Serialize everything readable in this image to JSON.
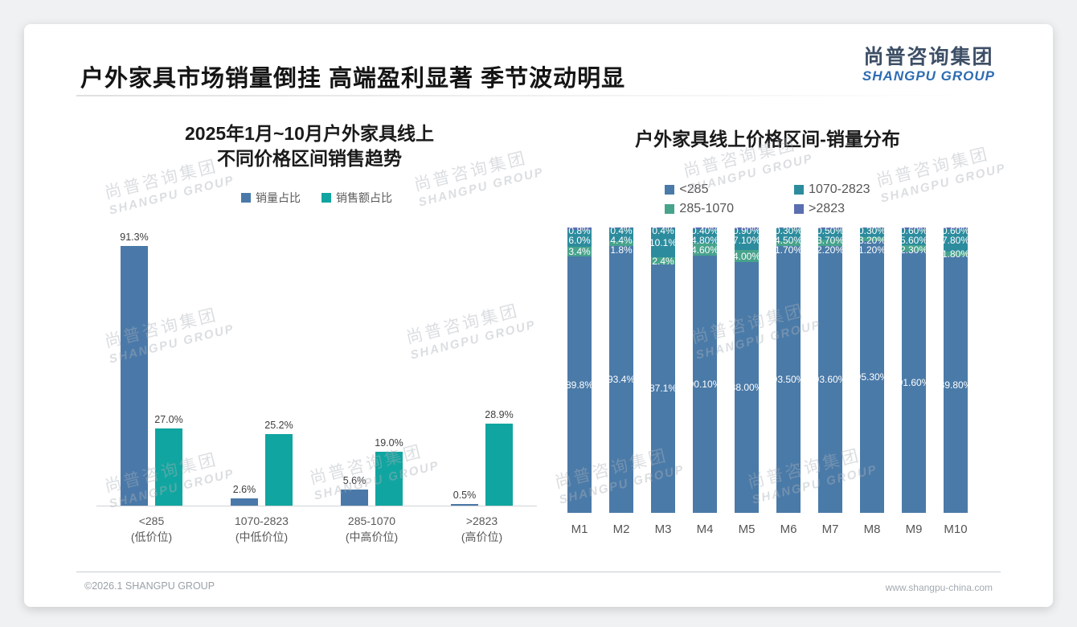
{
  "header": {
    "title": "户外家具市场销量倒挂 高端盈利显著 季节波动明显",
    "logo_cn": "尚普咨询集团",
    "logo_en": "SHANGPU GROUP"
  },
  "footer": {
    "left": "©2026.1 SHANGPU GROUP",
    "right": "www.shangpu-china.com"
  },
  "watermark": {
    "cn": "尚普咨询集团",
    "en": "SHANGPU GROUP"
  },
  "chart_data": [
    {
      "type": "bar",
      "title": "2025年1月~10月户外家具线上不同价格区间销售趋势",
      "title_lines": [
        "2025年1月~10月户外家具线上",
        "不同价格区间销售趋势"
      ],
      "categories": [
        "<285",
        "1070-2823",
        "285-1070",
        ">2823"
      ],
      "category_sublabels": [
        "(低价位)",
        "(中低价位)",
        "(中高价位)",
        "(高价位)"
      ],
      "xlabel": "",
      "ylabel": "",
      "ylim": [
        0,
        100
      ],
      "grid": false,
      "legend_position": "top",
      "series": [
        {
          "name": "销量占比",
          "color": "#4a79a9",
          "values": [
            91.3,
            2.6,
            5.6,
            0.5
          ],
          "labels": [
            "91.3%",
            "2.6%",
            "5.6%",
            "0.5%"
          ]
        },
        {
          "name": "销售额占比",
          "color": "#10a5a0",
          "values": [
            27.0,
            25.2,
            19.0,
            28.9
          ],
          "labels": [
            "27.0%",
            "25.2%",
            "19.0%",
            "28.9%"
          ]
        }
      ]
    },
    {
      "type": "stacked-bar",
      "title": "户外家具线上价格区间-销量分布",
      "categories": [
        "M1",
        "M2",
        "M3",
        "M4",
        "M5",
        "M6",
        "M7",
        "M8",
        "M9",
        "M10"
      ],
      "xlabel": "",
      "ylabel": "",
      "ylim": [
        0,
        100
      ],
      "grid": false,
      "legend_position": "top",
      "stack_order_bottom_to_top": [
        "<285",
        "285-1070",
        "1070-2823",
        ">2823"
      ],
      "legend_display_order": [
        "<285",
        "1070-2823",
        "285-1070",
        ">2823"
      ],
      "series": [
        {
          "name": "<285",
          "color": "#4a7aa8",
          "values": [
            89.8,
            93.4,
            87.1,
            90.1,
            88.0,
            93.5,
            93.6,
            95.3,
            91.6,
            89.8
          ],
          "labels": [
            "89.8%",
            "93.4%",
            "87.1%",
            "90.10%",
            "88.00%",
            "93.50%",
            "93.60%",
            "95.30%",
            "91.60%",
            "89.80%"
          ]
        },
        {
          "name": "285-1070",
          "color": "#47a38c",
          "values": [
            3.4,
            1.8,
            2.4,
            4.6,
            4.0,
            1.7,
            2.2,
            1.2,
            2.3,
            1.8
          ],
          "labels": [
            "3.4%",
            "1.8%",
            "2.4%",
            "4.60%",
            "4.00%",
            "1.70%",
            "2.20%",
            "1.20%",
            "2.30%",
            "1.80%"
          ]
        },
        {
          "name": "1070-2823",
          "color": "#2c8c9d",
          "values": [
            6.0,
            4.4,
            10.1,
            4.8,
            7.1,
            4.5,
            3.7,
            3.2,
            5.6,
            7.8
          ],
          "labels": [
            "6.0%",
            "4.4%",
            "10.1%",
            "4.80%",
            "7.10%",
            "4.50%",
            "3.70%",
            "3.20%",
            "5.60%",
            "7.80%"
          ]
        },
        {
          "name": ">2823",
          "color": "#5a6eb0",
          "values": [
            0.8,
            0.4,
            0.4,
            0.4,
            0.9,
            0.3,
            0.5,
            0.3,
            0.6,
            0.6
          ],
          "labels": [
            "0.8%",
            "0.4%",
            "0.4%",
            "0.40%",
            "0.90%",
            "0.30%",
            "0.50%",
            "0.30%",
            "0.60%",
            "0.60%"
          ]
        }
      ]
    }
  ]
}
